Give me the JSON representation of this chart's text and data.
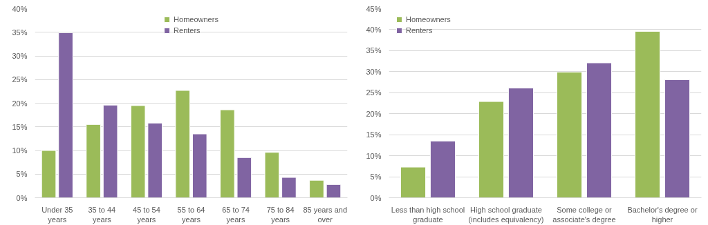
{
  "chart_data": [
    {
      "type": "bar",
      "categories": [
        "Under 35 years",
        "35 to 44 years",
        "45 to 54 years",
        "55 to 64 years",
        "65 to 74 years",
        "75 to 84 years",
        "85 years and over"
      ],
      "series": [
        {
          "name": "Homeowners",
          "color": "#9bbb59",
          "values": [
            10.0,
            15.5,
            19.5,
            22.7,
            18.6,
            9.6,
            3.7
          ]
        },
        {
          "name": "Renters",
          "color": "#8064a2",
          "values": [
            34.9,
            19.6,
            15.8,
            13.5,
            8.5,
            4.3,
            2.8
          ]
        }
      ],
      "ylim": [
        0,
        40
      ],
      "yticks": [
        {
          "value": 0,
          "label": "0%"
        },
        {
          "value": 5,
          "label": "5%"
        },
        {
          "value": 10,
          "label": "10%"
        },
        {
          "value": 15,
          "label": "15%"
        },
        {
          "value": 20,
          "label": "20%"
        },
        {
          "value": 25,
          "label": "25%"
        },
        {
          "value": 30,
          "label": "30%"
        },
        {
          "value": 35,
          "label": "35%"
        },
        {
          "value": 40,
          "label": "40%"
        }
      ],
      "grid": "y",
      "legend": "top"
    },
    {
      "type": "bar",
      "categories": [
        "Less than high school graduate",
        "High school graduate (includes equivalency)",
        "Some college or associate's degree",
        "Bachelor's degree or higher"
      ],
      "series": [
        {
          "name": "Homeowners",
          "color": "#9bbb59",
          "values": [
            7.3,
            22.9,
            29.9,
            39.6
          ]
        },
        {
          "name": "Renters",
          "color": "#8064a2",
          "values": [
            13.5,
            26.1,
            32.1,
            28.1
          ]
        }
      ],
      "ylim": [
        0,
        45
      ],
      "yticks": [
        {
          "value": 0,
          "label": "0%"
        },
        {
          "value": 5,
          "label": "5%"
        },
        {
          "value": 10,
          "label": "10%"
        },
        {
          "value": 15,
          "label": "15%"
        },
        {
          "value": 20,
          "label": "20%"
        },
        {
          "value": 25,
          "label": "25%"
        },
        {
          "value": 30,
          "label": "30%"
        },
        {
          "value": 35,
          "label": "35%"
        },
        {
          "value": 40,
          "label": "40%"
        },
        {
          "value": 45,
          "label": "45%"
        }
      ],
      "grid": "y",
      "legend": "top left"
    }
  ]
}
